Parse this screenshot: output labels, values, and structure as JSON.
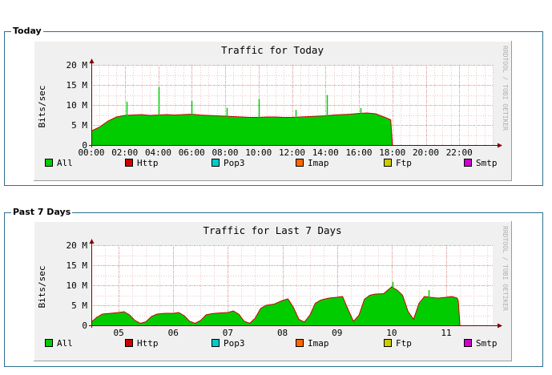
{
  "sections": [
    {
      "heading": "Today"
    },
    {
      "heading": "Past 7 Days"
    }
  ],
  "side_label": "RRDTOOL / TOBI OETIKER",
  "colors": {
    "panel_border": "#2f6f8f",
    "graph_bg": "#f0f0f0",
    "plot_bg": "#ffffff",
    "grid": "#e0a0a0",
    "axis": "#800000",
    "area": "#00cc00",
    "area_line": "#cc0000",
    "frame_light": "#ffffff",
    "frame_dark": "#9c9c9c"
  },
  "chart_data": [
    {
      "type": "area",
      "title": "Traffic for Today",
      "ylabel": "Bits/sec",
      "ylim": [
        0,
        20
      ],
      "y_unit": "M",
      "y_ticks": [
        "0",
        "5 M",
        "10 M",
        "15 M",
        "20 M"
      ],
      "xlim": [
        0,
        24
      ],
      "x_ticks": [
        "00:00",
        "02:00",
        "04:00",
        "06:00",
        "08:00",
        "10:00",
        "12:00",
        "14:00",
        "16:00",
        "18:00",
        "20:00",
        "22:00"
      ],
      "grid": true,
      "series": [
        {
          "name": "All",
          "x": [
            0,
            0.5,
            1,
            1.5,
            2,
            2.5,
            3,
            3.5,
            4,
            4.5,
            5,
            5.5,
            6,
            6.5,
            7,
            7.5,
            8,
            8.5,
            9,
            9.5,
            10,
            10.5,
            11,
            11.5,
            12,
            12.5,
            13,
            13.5,
            14,
            14.5,
            15,
            15.5,
            16,
            16.5,
            17,
            17.5,
            17.9,
            18
          ],
          "values": [
            3.5,
            4.5,
            6.0,
            7.0,
            7.4,
            7.5,
            7.6,
            7.4,
            7.5,
            7.6,
            7.5,
            7.6,
            7.7,
            7.5,
            7.4,
            7.3,
            7.2,
            7.1,
            7.0,
            6.9,
            6.9,
            7.0,
            7.0,
            6.9,
            6.9,
            7.0,
            7.1,
            7.2,
            7.3,
            7.5,
            7.6,
            7.7,
            7.9,
            8.0,
            7.8,
            7.0,
            6.3,
            0
          ]
        }
      ],
      "spikes": [
        {
          "x": 2.1,
          "value": 10.8
        },
        {
          "x": 4.0,
          "value": 14.5
        },
        {
          "x": 6.0,
          "value": 11.0
        },
        {
          "x": 8.1,
          "value": 9.3
        },
        {
          "x": 10.0,
          "value": 11.5
        },
        {
          "x": 12.2,
          "value": 8.8
        },
        {
          "x": 14.1,
          "value": 12.5
        },
        {
          "x": 16.1,
          "value": 9.2
        }
      ],
      "legend": [
        "All",
        "Http",
        "Pop3",
        "Imap",
        "Ftp",
        "Smtp"
      ],
      "legend_colors": [
        "#00cc00",
        "#cc0000",
        "#00cccc",
        "#ff6600",
        "#cccc00",
        "#cc00cc"
      ]
    },
    {
      "type": "area",
      "title": "Traffic for Last 7 Days",
      "ylabel": "Bits/sec",
      "ylim": [
        0,
        20
      ],
      "y_unit": "M",
      "y_ticks": [
        "0",
        "5 M",
        "10 M",
        "15 M",
        "20 M"
      ],
      "xlim": [
        4.5,
        11.85
      ],
      "x_ticks": [
        "05",
        "06",
        "07",
        "08",
        "09",
        "10",
        "11"
      ],
      "grid": true,
      "series": [
        {
          "name": "All",
          "x": [
            4.5,
            4.6,
            4.7,
            4.85,
            5.0,
            5.1,
            5.2,
            5.3,
            5.4,
            5.5,
            5.6,
            5.7,
            5.85,
            6.0,
            6.1,
            6.2,
            6.3,
            6.4,
            6.5,
            6.6,
            6.7,
            6.85,
            7.0,
            7.1,
            7.2,
            7.3,
            7.4,
            7.5,
            7.6,
            7.7,
            7.85,
            8.0,
            8.1,
            8.2,
            8.3,
            8.4,
            8.5,
            8.6,
            8.7,
            8.85,
            9.0,
            9.1,
            9.2,
            9.3,
            9.4,
            9.5,
            9.6,
            9.7,
            9.85,
            10.0,
            10.1,
            10.2,
            10.3,
            10.4,
            10.5,
            10.6,
            10.7,
            10.85,
            11.0,
            11.1,
            11.2,
            11.22,
            11.25
          ],
          "values": [
            0.8,
            2.0,
            2.8,
            3.0,
            3.2,
            3.4,
            2.6,
            1.2,
            0.5,
            0.9,
            2.2,
            2.8,
            3.0,
            3.0,
            3.2,
            2.4,
            1.0,
            0.5,
            1.2,
            2.6,
            2.9,
            3.1,
            3.2,
            3.6,
            2.8,
            1.0,
            0.5,
            1.8,
            4.2,
            5.0,
            5.3,
            6.2,
            6.6,
            4.5,
            1.5,
            0.8,
            2.5,
            5.5,
            6.3,
            6.8,
            7.0,
            7.2,
            4.0,
            1.0,
            2.5,
            6.5,
            7.5,
            7.8,
            7.9,
            9.6,
            8.8,
            7.5,
            3.5,
            1.5,
            5.5,
            7.2,
            7.0,
            6.8,
            7.0,
            7.2,
            6.8,
            6.0,
            0
          ]
        }
      ],
      "spikes": [
        {
          "x": 10.02,
          "value": 10.8
        },
        {
          "x": 10.67,
          "value": 8.8
        }
      ],
      "legend": [
        "All",
        "Http",
        "Pop3",
        "Imap",
        "Ftp",
        "Smtp"
      ],
      "legend_colors": [
        "#00cc00",
        "#cc0000",
        "#00cccc",
        "#ff6600",
        "#cccc00",
        "#cc00cc"
      ]
    }
  ]
}
